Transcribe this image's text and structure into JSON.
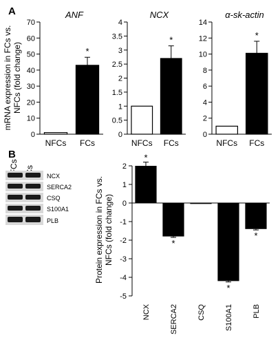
{
  "panels": {
    "a": "A",
    "b": "B"
  },
  "colors": {
    "filled": "#000000",
    "empty": "#ffffff",
    "axis": "#000000",
    "blot_bg": "#d8d8d8",
    "band": "#1a1a1a"
  },
  "panel_a_ylabel": [
    "mRNA expression in FCs vs.",
    "NFCs  (fold change)"
  ],
  "panel_b_ylabel": [
    "Protein expression in FCs vs.",
    "NFCs  (fold change)"
  ],
  "blot": {
    "lanes": [
      "NFCs",
      "FCs"
    ],
    "rows": [
      "NCX",
      "SERCA2",
      "CSQ",
      "S100A1",
      "PLB"
    ]
  },
  "chart_data": [
    {
      "type": "bar",
      "title": "ANF",
      "xlabel": "",
      "ylabel": "mRNA expression in FCs vs. NFCs  (fold change)",
      "categories": [
        "NFCs",
        "FCs"
      ],
      "values": [
        1,
        43
      ],
      "errors": [
        0,
        5
      ],
      "fills": [
        "empty",
        "filled"
      ],
      "significant": [
        false,
        true
      ],
      "ylim": [
        0,
        70
      ],
      "yticks": [
        0,
        10,
        20,
        30,
        40,
        50,
        60,
        70
      ],
      "star": "*"
    },
    {
      "type": "bar",
      "title": "NCX",
      "xlabel": "",
      "ylabel": "",
      "categories": [
        "NFCs",
        "FCs"
      ],
      "values": [
        1,
        2.7
      ],
      "errors": [
        0,
        0.45
      ],
      "fills": [
        "empty",
        "filled"
      ],
      "significant": [
        false,
        true
      ],
      "ylim": [
        0,
        4
      ],
      "yticks": [
        0,
        0.5,
        1,
        1.5,
        2,
        2.5,
        3,
        3.5,
        4
      ],
      "star": "*"
    },
    {
      "type": "bar",
      "title": "α-sk-actin",
      "xlabel": "",
      "ylabel": "",
      "categories": [
        "NFCs",
        "FCs"
      ],
      "values": [
        1,
        10.1
      ],
      "errors": [
        0,
        1.5
      ],
      "fills": [
        "empty",
        "filled"
      ],
      "significant": [
        false,
        true
      ],
      "ylim": [
        0,
        14
      ],
      "yticks": [
        0,
        2,
        4,
        6,
        8,
        10,
        12,
        14
      ],
      "star": "*"
    },
    {
      "type": "bar",
      "title": "",
      "xlabel": "",
      "ylabel": "Protein expression in FCs vs. NFCs  (fold change)",
      "categories": [
        "NCX",
        "SERCA2",
        "CSQ",
        "S100A1",
        "PLB"
      ],
      "values": [
        2.0,
        -1.8,
        -0.05,
        -4.2,
        -1.4
      ],
      "errors": [
        0.2,
        0.05,
        0.0,
        0.05,
        0.05
      ],
      "significant": [
        true,
        true,
        false,
        true,
        true
      ],
      "ylim": [
        -5,
        2
      ],
      "yticks": [
        -5,
        -4,
        -3,
        -2,
        -1,
        0,
        1,
        2
      ],
      "star": "*"
    }
  ]
}
